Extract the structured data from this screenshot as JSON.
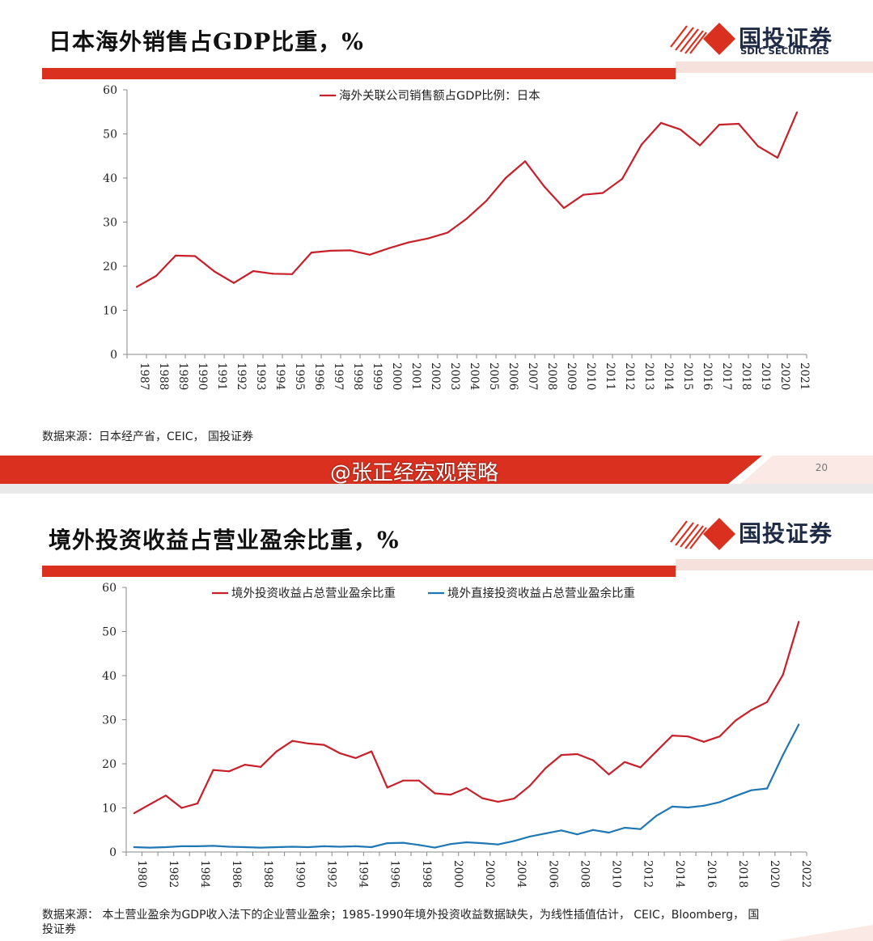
{
  "panel1": {
    "title": "日本海外销售占GDP比重，%",
    "logo_cn": "国投证券",
    "logo_en": "SDIC SECURITIES",
    "source": "数据来源：日本经产省，CEIC， 国投证券",
    "page_number": "20",
    "watermark": "@张正经宏观策略"
  },
  "panel2": {
    "title": "境外投资收益占营业盈余比重，%",
    "logo_cn": "国投证券",
    "source_line1": "数据来源： 本土营业盈余为GDP收入法下的企业营业盈余；1985-1990年境外投资收益数据缺失，为线性插值估计， CEIC，Bloomberg， 国",
    "source_line2": "投证券"
  },
  "colors": {
    "red": "#c8202a",
    "blue": "#1f77b4",
    "brand_red": "#d9301f"
  },
  "chart_data": [
    {
      "type": "line",
      "ylim": [
        0,
        60
      ],
      "yticks": [
        0,
        10,
        20,
        30,
        40,
        50,
        60
      ],
      "x": [
        "1987",
        "1988",
        "1989",
        "1990",
        "1991",
        "1992",
        "1993",
        "1994",
        "1995",
        "1996",
        "1997",
        "1998",
        "1999",
        "2000",
        "2001",
        "2002",
        "2003",
        "2004",
        "2005",
        "2006",
        "2007",
        "2008",
        "2009",
        "2010",
        "2011",
        "2012",
        "2013",
        "2014",
        "2015",
        "2016",
        "2017",
        "2018",
        "2019",
        "2020",
        "2021"
      ],
      "legend_position": "top-center",
      "series": [
        {
          "name": "海外关联公司销售额占GDP比例：日本",
          "color": "#c8202a",
          "values": [
            15.3,
            17.8,
            22.4,
            22.3,
            18.8,
            16.2,
            18.9,
            18.3,
            18.2,
            23.1,
            23.5,
            23.6,
            22.6,
            24.1,
            25.4,
            26.3,
            27.6,
            30.8,
            34.8,
            40.0,
            43.8,
            38.0,
            33.2,
            36.2,
            36.6,
            39.8,
            47.6,
            52.5,
            51.0,
            47.4,
            52.1,
            52.3,
            47.2,
            44.6,
            54.9
          ]
        }
      ]
    },
    {
      "type": "line",
      "ylim": [
        0,
        60
      ],
      "yticks": [
        0,
        10,
        20,
        30,
        40,
        50,
        60
      ],
      "x": [
        "1980",
        "1981",
        "1982",
        "1983",
        "1984",
        "1985",
        "1986",
        "1987",
        "1988",
        "1989",
        "1990",
        "1991",
        "1992",
        "1993",
        "1994",
        "1995",
        "1996",
        "1997",
        "1998",
        "1999",
        "2000",
        "2001",
        "2002",
        "2003",
        "2004",
        "2005",
        "2006",
        "2007",
        "2008",
        "2009",
        "2010",
        "2011",
        "2012",
        "2013",
        "2014",
        "2015",
        "2016",
        "2017",
        "2018",
        "2019",
        "2020",
        "2021",
        "2022"
      ],
      "xtick_labels": [
        "1980",
        "1982",
        "1984",
        "1986",
        "1988",
        "1990",
        "1992",
        "1994",
        "1996",
        "1998",
        "2000",
        "2002",
        "2004",
        "2006",
        "2008",
        "2010",
        "2012",
        "2014",
        "2016",
        "2018",
        "2020",
        "2022"
      ],
      "legend_position": "top-center",
      "series": [
        {
          "name": "境外投资收益占总营业盈余比重",
          "color": "#c8202a",
          "values": [
            8.8,
            10.8,
            12.8,
            10.0,
            11.0,
            18.6,
            18.3,
            19.8,
            19.3,
            22.8,
            25.2,
            24.6,
            24.3,
            22.4,
            21.3,
            22.8,
            14.6,
            16.2,
            16.2,
            13.3,
            13.0,
            14.5,
            12.2,
            11.4,
            12.1,
            15.0,
            19.0,
            22.0,
            22.2,
            20.8,
            17.6,
            20.4,
            19.2,
            22.8,
            26.4,
            26.2,
            25.0,
            26.2,
            29.8,
            32.2,
            34.0,
            40.2,
            52.2
          ]
        },
        {
          "name": "境外直接投资收益占总营业盈余比重",
          "color": "#1f77b4",
          "values": [
            1.1,
            1.0,
            1.1,
            1.3,
            1.3,
            1.4,
            1.2,
            1.1,
            1.0,
            1.1,
            1.2,
            1.1,
            1.3,
            1.2,
            1.3,
            1.1,
            2.0,
            2.1,
            1.6,
            1.0,
            1.8,
            2.2,
            2.0,
            1.7,
            2.5,
            3.5,
            4.2,
            4.9,
            4.0,
            5.0,
            4.4,
            5.5,
            5.2,
            8.2,
            10.3,
            10.1,
            10.5,
            11.3,
            12.7,
            14.0,
            14.4,
            22.0,
            28.9
          ]
        }
      ]
    }
  ]
}
